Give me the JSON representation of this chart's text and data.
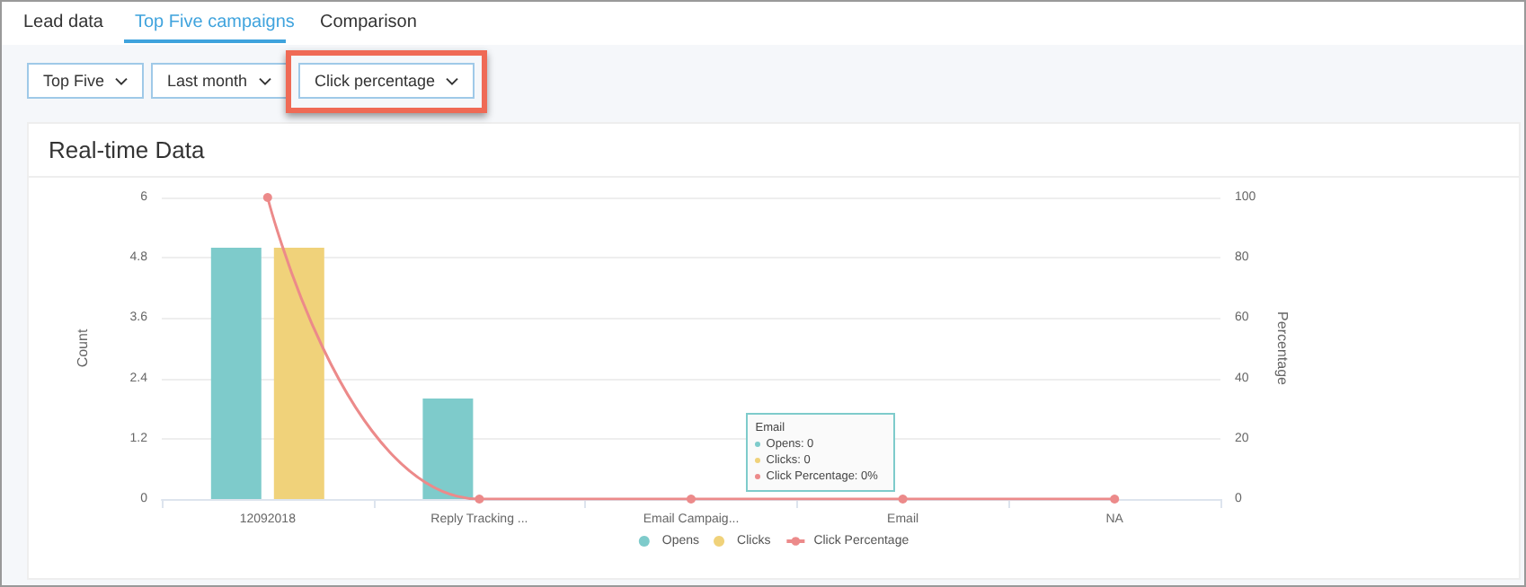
{
  "chart_data": {
    "type": "bar",
    "title": "Real-time Data",
    "ylabel": "Count",
    "y2label": "Percentage",
    "categories": [
      "12092018",
      "Reply Tracking ...",
      "Email Campaig...",
      "Email",
      "NA"
    ],
    "series": [
      {
        "name": "Opens",
        "color": "#7ecbcb",
        "values": [
          5,
          2,
          0,
          0,
          0
        ]
      },
      {
        "name": "Clicks",
        "color": "#f0d27a",
        "values": [
          5,
          0,
          0,
          0,
          0
        ]
      },
      {
        "name": "Click Percentage",
        "type": "line",
        "axis": "y2",
        "color": "#ec8a8a",
        "marker": "circle",
        "values": [
          100,
          0,
          0,
          0,
          0
        ]
      }
    ],
    "ylim": [
      0,
      6
    ],
    "yticks": [
      0,
      1.2,
      2.4,
      3.6,
      4.8,
      6
    ],
    "y2lim": [
      0,
      100
    ],
    "y2ticks": [
      0,
      20,
      40,
      60,
      80,
      100
    ],
    "grid": "y",
    "legend": "bottom",
    "annotations": [
      "Lead data",
      "Top Five campaigns",
      "Comparison",
      "Top Five",
      "Last month",
      "Click percentage",
      {
        "text": "Email\nOpens: 0\nClicks: 0\nClick Percentage: 0%",
        "x": "Email",
        "y": 0
      }
    ]
  }
}
